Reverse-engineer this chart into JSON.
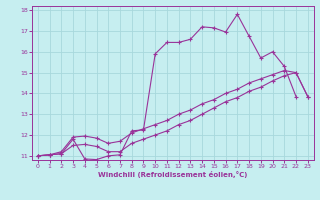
{
  "xlabel": "Windchill (Refroidissement éolien,°C)",
  "bg_color": "#c6eef0",
  "line_color": "#993399",
  "grid_color": "#a8d8dc",
  "xlim": [
    -0.5,
    23.5
  ],
  "ylim": [
    10.8,
    18.2
  ],
  "xticks": [
    0,
    1,
    2,
    3,
    4,
    5,
    6,
    7,
    8,
    9,
    10,
    11,
    12,
    13,
    14,
    15,
    16,
    17,
    18,
    19,
    20,
    21,
    22,
    23
  ],
  "yticks": [
    11,
    12,
    13,
    14,
    15,
    16,
    17,
    18
  ],
  "line1_x": [
    0,
    1,
    2,
    3,
    4,
    5,
    6,
    7,
    8,
    9,
    10,
    11,
    12,
    13,
    14,
    15,
    16,
    17,
    18,
    19,
    20,
    21,
    22
  ],
  "line1_y": [
    11.0,
    11.05,
    11.1,
    11.8,
    10.85,
    10.82,
    11.0,
    11.05,
    12.2,
    12.25,
    15.9,
    16.45,
    16.45,
    16.6,
    17.2,
    17.15,
    16.95,
    17.8,
    16.75,
    15.7,
    16.0,
    15.3,
    13.85
  ],
  "line2_x": [
    0,
    1,
    2,
    3,
    4,
    5,
    6,
    7,
    8,
    9,
    10,
    11,
    12,
    13,
    14,
    15,
    16,
    17,
    18,
    19,
    20,
    21,
    22,
    23
  ],
  "line2_y": [
    11.0,
    11.05,
    11.2,
    11.9,
    11.95,
    11.85,
    11.6,
    11.7,
    12.1,
    12.3,
    12.5,
    12.7,
    13.0,
    13.2,
    13.5,
    13.7,
    14.0,
    14.2,
    14.5,
    14.7,
    14.9,
    15.1,
    15.0,
    13.85
  ],
  "line3_x": [
    0,
    1,
    2,
    3,
    4,
    5,
    6,
    7,
    8,
    9,
    10,
    11,
    12,
    13,
    14,
    15,
    16,
    17,
    18,
    19,
    20,
    21,
    22,
    23
  ],
  "line3_y": [
    11.0,
    11.05,
    11.1,
    11.5,
    11.55,
    11.45,
    11.2,
    11.2,
    11.6,
    11.8,
    12.0,
    12.2,
    12.5,
    12.7,
    13.0,
    13.3,
    13.6,
    13.8,
    14.1,
    14.3,
    14.6,
    14.85,
    15.0,
    13.85
  ]
}
